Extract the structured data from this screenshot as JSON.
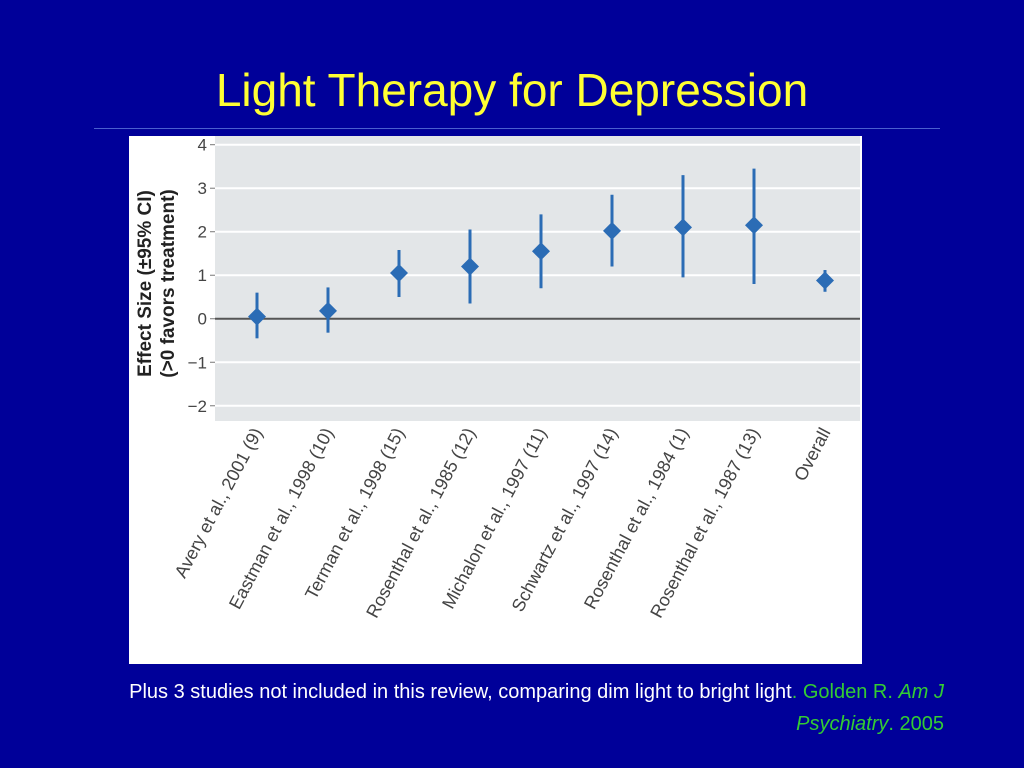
{
  "slide": {
    "title": "Light Therapy for Depression",
    "caption_text": "Plus 3 studies not included in this review, comparing dim light to bright light",
    "caption_punct": ".",
    "citation_author": " Golden R. ",
    "citation_journal": "Am J Psychiatry",
    "citation_year": ". 2005"
  },
  "colors": {
    "background": "#000099",
    "title": "#FFFF33",
    "caption": "#FFFFFF",
    "citation": "#33CC33",
    "plot_bg": "#E3E6E8",
    "marker": "#2B6CB5",
    "zero_line": "#555555"
  },
  "chart_data": {
    "type": "scatter",
    "subtype": "forest-plot",
    "ylabel_line1": "Effect Size (±95% CI)",
    "ylabel_line2": "(>0 favors treatment)",
    "ylim": [
      -2.35,
      4.2
    ],
    "yticks": [
      "4",
      "3",
      "2",
      "1",
      "0",
      "−1",
      "−2"
    ],
    "ytick_values": [
      4,
      3,
      2,
      1,
      0,
      -1,
      -2
    ],
    "grid": true,
    "categories": [
      "Avery et al., 2001 (9)",
      "Eastman et al., 1998 (10)",
      "Terman et al., 1998 (15)",
      "Rosenthal et al., 1985 (12)",
      "Michalon et al., 1997 (11)",
      "Schwartz et al., 1997 (14)",
      "Rosenthal et al., 1984 (1)",
      "Rosenthal et al., 1987 (13)",
      "Overall"
    ],
    "values": [
      0.05,
      0.18,
      1.05,
      1.2,
      1.55,
      2.02,
      2.1,
      2.15,
      0.88
    ],
    "ci_low": [
      -0.45,
      -0.32,
      0.5,
      0.35,
      0.7,
      1.2,
      0.95,
      0.8,
      0.62
    ],
    "ci_high": [
      0.6,
      0.72,
      1.58,
      2.05,
      2.4,
      2.85,
      3.3,
      3.45,
      1.12
    ]
  }
}
